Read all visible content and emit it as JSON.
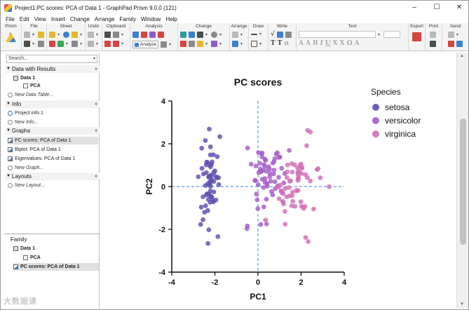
{
  "window": {
    "title": "Project1:PC scores: PCA of Data 1 - GraphPad Prism 9.0.0 (121)",
    "controls": [
      "–",
      "☐",
      "✕"
    ]
  },
  "menu": [
    "File",
    "Edit",
    "View",
    "Insert",
    "Change",
    "Arrange",
    "Family",
    "Window",
    "Help"
  ],
  "ribbon": {
    "groups": [
      "Prism",
      "File",
      "Sheet",
      "Undo",
      "Clipboard",
      "Analysis",
      "Change",
      "Arrange",
      "Draw",
      "Write",
      "Text",
      "Export",
      "Print",
      "Send"
    ],
    "analyze_label": "Analyze"
  },
  "sidebar": {
    "search_placeholder": "Search...",
    "data_section": {
      "title": "Data with Results",
      "items": [
        {
          "label": "Data 1",
          "type": "table"
        },
        {
          "label": "PCA",
          "type": "doc"
        },
        {
          "label": "New Data Table...",
          "type": "new"
        }
      ]
    },
    "info_section": {
      "title": "Info",
      "items": [
        {
          "label": "Project info 1",
          "type": "info"
        },
        {
          "label": "New Info...",
          "type": "new"
        }
      ]
    },
    "graphs_section": {
      "title": "Graphs",
      "items": [
        {
          "label": "PC scores: PCA of Data 1",
          "type": "graph",
          "selected": true
        },
        {
          "label": "Biplot: PCA of Data 1",
          "type": "graph"
        },
        {
          "label": "Eigenvalues: PCA of Data 1",
          "type": "graph"
        },
        {
          "label": "New Graph...",
          "type": "new"
        }
      ]
    },
    "layouts_section": {
      "title": "Layouts",
      "items": [
        {
          "label": "New Layout...",
          "type": "new"
        }
      ]
    },
    "family": {
      "title": "Family",
      "items": [
        {
          "label": "Data 1",
          "type": "table"
        },
        {
          "label": "PCA",
          "type": "doc"
        },
        {
          "label": "PC scores: PCA of Data 1",
          "type": "graph",
          "selected": true
        }
      ]
    }
  },
  "watermark": "大数据课",
  "chart_data": {
    "type": "scatter",
    "title": "PC scores",
    "xlabel": "PC1",
    "ylabel": "PC2",
    "xlim": [
      -4,
      4
    ],
    "ylim": [
      -4,
      4
    ],
    "xticks": [
      -4,
      -2,
      0,
      2,
      4
    ],
    "yticks": [
      -4,
      -2,
      0,
      2,
      4
    ],
    "legend_title": "Species",
    "legend_position": "right",
    "reference_lines": {
      "x": 0,
      "y": 0,
      "style": "dashed",
      "color": "#5a9bd6"
    },
    "series": [
      {
        "name": "setosa",
        "color": "#5b4fb0",
        "points": [
          [
            -2.26,
            0.48
          ],
          [
            -2.08,
            -0.67
          ],
          [
            -2.36,
            -0.34
          ],
          [
            -2.3,
            -0.6
          ],
          [
            -2.39,
            0.65
          ],
          [
            -2.07,
            1.49
          ],
          [
            -2.44,
            0.05
          ],
          [
            -2.23,
            0.22
          ],
          [
            -2.33,
            -1.12
          ],
          [
            -2.18,
            -0.47
          ],
          [
            -2.16,
            1.04
          ],
          [
            -2.33,
            0.13
          ],
          [
            -2.22,
            -0.73
          ],
          [
            -2.63,
            -0.96
          ],
          [
            -2.2,
            1.86
          ],
          [
            -2.26,
            2.69
          ],
          [
            -2.21,
            1.48
          ],
          [
            -2.19,
            0.49
          ],
          [
            -1.89,
            1.4
          ],
          [
            -2.34,
            1.13
          ],
          [
            -1.91,
            0.41
          ],
          [
            -2.2,
            0.92
          ],
          [
            -2.77,
            0.46
          ],
          [
            -1.82,
            0.09
          ],
          [
            -2.23,
            0.14
          ],
          [
            -1.95,
            -0.63
          ],
          [
            -2.05,
            0.24
          ],
          [
            -2.17,
            0.53
          ],
          [
            -2.14,
            0.31
          ],
          [
            -2.27,
            -0.34
          ],
          [
            -2.14,
            -0.5
          ],
          [
            -1.83,
            0.42
          ],
          [
            -2.61,
            1.79
          ],
          [
            -2.44,
            2.15
          ],
          [
            -2.19,
            -0.46
          ],
          [
            -2.21,
            -0.21
          ],
          [
            -2.05,
            0.66
          ],
          [
            -2.53,
            0.59
          ],
          [
            -2.43,
            -0.9
          ],
          [
            -2.17,
            0.27
          ],
          [
            -2.29,
            0.44
          ],
          [
            -1.86,
            -2.34
          ],
          [
            -2.55,
            -0.48
          ],
          [
            -1.96,
            0.47
          ],
          [
            -2.13,
            1.15
          ],
          [
            -2.07,
            -0.71
          ],
          [
            -2.38,
            1.14
          ],
          [
            -2.39,
            -0.39
          ],
          [
            -2.23,
            1.0
          ],
          [
            -2.2,
            0.01
          ],
          [
            -1.77,
            2.33
          ],
          [
            -2.66,
            -1.77
          ],
          [
            -2.28,
            -2.02
          ],
          [
            -2.0,
            0.73
          ],
          [
            -2.48,
            -1.2
          ],
          [
            -2.55,
            -1.55
          ],
          [
            -2.32,
            -2.66
          ],
          [
            -2.05,
            -0.25
          ],
          [
            -2.6,
            0.85
          ],
          [
            -2.4,
            1.01
          ]
        ]
      },
      {
        "name": "versicolor",
        "color": "#a45cc8",
        "points": [
          [
            1.1,
            0.86
          ],
          [
            0.73,
            0.59
          ],
          [
            1.24,
            0.61
          ],
          [
            0.4,
            -1.75
          ],
          [
            1.07,
            -0.21
          ],
          [
            0.39,
            -0.59
          ],
          [
            0.74,
            0.77
          ],
          [
            -0.49,
            -1.84
          ],
          [
            0.92,
            0.03
          ],
          [
            -0.01,
            -1.03
          ],
          [
            -0.51,
            -1.97
          ],
          [
            0.26,
            -0.05
          ],
          [
            0.13,
            -1.77
          ],
          [
            0.63,
            -0.24
          ],
          [
            -0.04,
            -0.62
          ],
          [
            0.85,
            1.52
          ],
          [
            0.33,
            0.19
          ],
          [
            0.27,
            -0.95
          ],
          [
            0.78,
            1.3
          ],
          [
            0.49,
            0.93
          ],
          [
            0.11,
            0.82
          ],
          [
            0.33,
            0.37
          ],
          [
            0.74,
            1.16
          ],
          [
            0.97,
            1.36
          ],
          [
            1.02,
            1.38
          ],
          [
            0.53,
            0.82
          ],
          [
            0.04,
            0.65
          ],
          [
            0.79,
            0.23
          ],
          [
            -0.32,
            1.05
          ],
          [
            0.19,
            1.57
          ],
          [
            0.28,
            1.03
          ],
          [
            0.02,
            1.59
          ],
          [
            0.17,
            1.52
          ],
          [
            0.32,
            0.93
          ],
          [
            -0.48,
            1.8
          ],
          [
            0.8,
            -0.1
          ],
          [
            -0.07,
            -0.35
          ],
          [
            0.55,
            0.46
          ],
          [
            0.69,
            1.1
          ],
          [
            0.37,
            0.72
          ],
          [
            0.59,
            0.25
          ],
          [
            0.19,
            1.38
          ],
          [
            0.08,
            1.09
          ],
          [
            0.33,
            1.28
          ],
          [
            0.43,
            0.02
          ],
          [
            -0.14,
            0.28
          ],
          [
            0.14,
            0.7
          ],
          [
            0.2,
            0.34
          ],
          [
            0.68,
            -0.39
          ],
          [
            0.42,
            0.14
          ],
          [
            -0.1,
            0.96
          ],
          [
            0.21,
            0.75
          ],
          [
            0.96,
            0.43
          ],
          [
            1.2,
            0.17
          ],
          [
            -0.13,
            0.29
          ],
          [
            0.55,
            0.62
          ],
          [
            0.01,
            0.09
          ],
          [
            0.35,
            1.23
          ],
          [
            1.45,
            1.69
          ],
          [
            0.9,
            1.58
          ]
        ]
      },
      {
        "name": "virginica",
        "color": "#cf6fb6",
        "points": [
          [
            1.84,
            0.87
          ],
          [
            1.15,
            -0.7
          ],
          [
            2.2,
            0.56
          ],
          [
            1.43,
            -0.05
          ],
          [
            1.86,
            0.29
          ],
          [
            2.74,
            0.79
          ],
          [
            0.35,
            -1.56
          ],
          [
            2.29,
            0.42
          ],
          [
            1.99,
            -0.71
          ],
          [
            2.26,
            1.91
          ],
          [
            1.36,
            0.69
          ],
          [
            1.59,
            -0.42
          ],
          [
            1.88,
            0.41
          ],
          [
            1.25,
            -1.16
          ],
          [
            1.46,
            -0.44
          ],
          [
            1.59,
            0.68
          ],
          [
            1.47,
            0.25
          ],
          [
            2.43,
            2.55
          ],
          [
            3.3,
            -0.01
          ],
          [
            1.26,
            -1.76
          ],
          [
            2.03,
            0.91
          ],
          [
            0.98,
            -0.57
          ],
          [
            2.89,
            0.41
          ],
          [
            1.33,
            -0.48
          ],
          [
            1.7,
            1.01
          ],
          [
            1.95,
            1.0
          ],
          [
            1.17,
            -0.32
          ],
          [
            1.02,
            0.07
          ],
          [
            1.78,
            -0.19
          ],
          [
            1.86,
            0.56
          ],
          [
            2.43,
            0.26
          ],
          [
            2.3,
            2.63
          ],
          [
            1.86,
            -0.18
          ],
          [
            1.11,
            -0.29
          ],
          [
            1.19,
            -0.81
          ],
          [
            2.79,
            0.84
          ],
          [
            1.57,
            1.07
          ],
          [
            1.34,
            0.42
          ],
          [
            0.92,
            0.02
          ],
          [
            1.85,
            0.67
          ],
          [
            2.01,
            0.61
          ],
          [
            1.9,
            0.69
          ],
          [
            1.15,
            -0.7
          ],
          [
            2.04,
            0.86
          ],
          [
            2.0,
            1.05
          ],
          [
            1.86,
            0.38
          ],
          [
            1.56,
            -0.9
          ],
          [
            1.52,
            0.27
          ],
          [
            1.37,
            1.01
          ],
          [
            0.96,
            -0.02
          ],
          [
            1.62,
            -0.69
          ],
          [
            2.18,
            -0.92
          ],
          [
            2.21,
            -2.38
          ],
          [
            2.33,
            -2.57
          ],
          [
            2.02,
            -0.93
          ],
          [
            2.58,
            -1.05
          ],
          [
            1.72,
            -0.92
          ],
          [
            2.12,
            -1.02
          ],
          [
            1.6,
            -0.26
          ],
          [
            1.25,
            -0.1
          ]
        ]
      }
    ]
  }
}
